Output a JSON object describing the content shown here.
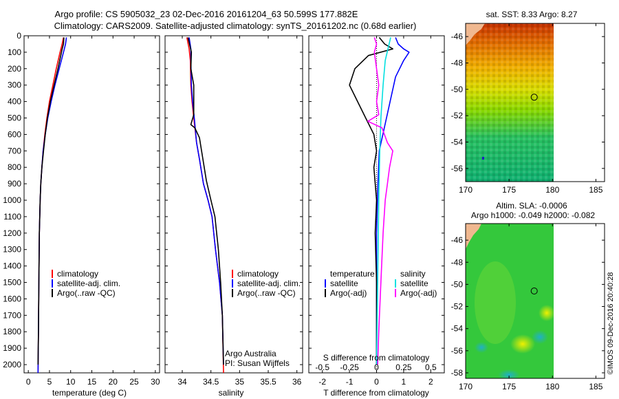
{
  "header": {
    "title1": "Argo profile: CS 5905032_23 02-Dec-2016 20161204_63 50.599S 177.882E",
    "title2": "Climatology: CARS2009. Satellite-adjusted climatology: synTS_20161202.nc (0.68d earlier)"
  },
  "watermark": "©IMOS 09-Dec-2016 20:40:28",
  "credit": {
    "line1": "Argo Australia",
    "line2": "PI: Susan Wijffels"
  },
  "colors": {
    "climatology": "#ff0000",
    "satellite": "#0000ff",
    "argo": "#000000",
    "sal_satellite": "#00e0e0",
    "sal_argo": "#ff00ff"
  },
  "depth_axis": {
    "ylim": [
      0,
      2050
    ],
    "ticks": [
      "0",
      "100",
      "200",
      "300",
      "400",
      "500",
      "600",
      "700",
      "800",
      "900",
      "1000",
      "1100",
      "1200",
      "1300",
      "1400",
      "1500",
      "1600",
      "1700",
      "1800",
      "1900",
      "2000"
    ]
  },
  "chart_data": [
    {
      "type": "line",
      "xlabel": "temperature (deg C)",
      "xlim": [
        -1,
        31
      ],
      "xticks": [
        "0",
        "5",
        "10",
        "15",
        "20",
        "25",
        "30"
      ],
      "legend": [
        "climatology",
        "satellite-adj. clim.",
        "Argo(..raw -QC)"
      ],
      "series": [
        {
          "name": "climatology",
          "points": [
            [
              8.3,
              10
            ],
            [
              8.0,
              50
            ],
            [
              7.5,
              100
            ],
            [
              6.6,
              200
            ],
            [
              5.8,
              300
            ],
            [
              5.0,
              400
            ],
            [
              4.4,
              500
            ],
            [
              3.9,
              600
            ],
            [
              3.5,
              700
            ],
            [
              3.2,
              800
            ],
            [
              2.95,
              900
            ],
            [
              2.8,
              1000
            ],
            [
              2.6,
              1200
            ],
            [
              2.5,
              1500
            ],
            [
              2.4,
              1800
            ],
            [
              2.3,
              2050
            ]
          ]
        },
        {
          "name": "satellite-adj. clim.",
          "points": [
            [
              9.0,
              10
            ],
            [
              8.8,
              50
            ],
            [
              8.3,
              100
            ],
            [
              7.3,
              200
            ],
            [
              6.3,
              300
            ],
            [
              5.4,
              400
            ],
            [
              4.6,
              500
            ],
            [
              4.0,
              600
            ],
            [
              3.5,
              700
            ],
            [
              3.2,
              800
            ],
            [
              2.95,
              900
            ],
            [
              2.8,
              1000
            ],
            [
              2.6,
              1200
            ],
            [
              2.5,
              1500
            ],
            [
              2.4,
              1800
            ],
            [
              2.3,
              2050
            ]
          ]
        },
        {
          "name": "Argo(..raw -QC)",
          "points": [
            [
              8.4,
              10
            ],
            [
              8.3,
              50
            ],
            [
              8.0,
              80
            ],
            [
              7.0,
              200
            ],
            [
              6.1,
              300
            ],
            [
              5.2,
              400
            ],
            [
              4.5,
              500
            ],
            [
              4.0,
              600
            ],
            [
              3.6,
              700
            ],
            [
              3.2,
              800
            ],
            [
              2.95,
              900
            ],
            [
              2.8,
              1000
            ],
            [
              2.6,
              1200
            ],
            [
              2.5,
              1500
            ],
            [
              2.4,
              1800
            ],
            [
              2.3,
              2000
            ]
          ]
        }
      ]
    },
    {
      "type": "line",
      "xlabel": "salinity",
      "xlim": [
        33.7,
        36.1
      ],
      "xticks": [
        "34",
        "34.5",
        "35",
        "35.5",
        "36"
      ],
      "legend": [
        "climatology",
        "satellite-adj. clim.",
        "Argo(..raw -QC)"
      ],
      "series": [
        {
          "name": "climatology",
          "points": [
            [
              34.08,
              10
            ],
            [
              34.12,
              80
            ],
            [
              34.14,
              150
            ],
            [
              34.15,
              300
            ],
            [
              34.17,
              400
            ],
            [
              34.2,
              500
            ],
            [
              34.25,
              650
            ],
            [
              34.3,
              750
            ],
            [
              34.37,
              900
            ],
            [
              34.45,
              1000
            ],
            [
              34.52,
              1100
            ],
            [
              34.58,
              1300
            ],
            [
              34.65,
              1500
            ],
            [
              34.7,
              1700
            ],
            [
              34.72,
              2050
            ]
          ]
        },
        {
          "name": "satellite-adj. clim.",
          "points": [
            [
              34.12,
              10
            ],
            [
              34.15,
              80
            ],
            [
              34.15,
              150
            ],
            [
              34.16,
              300
            ],
            [
              34.18,
              400
            ],
            [
              34.21,
              500
            ],
            [
              34.25,
              650
            ],
            [
              34.3,
              750
            ],
            [
              34.37,
              900
            ],
            [
              34.45,
              1000
            ],
            [
              34.52,
              1100
            ],
            [
              34.58,
              1300
            ],
            [
              34.65,
              1500
            ],
            [
              34.7,
              1700
            ],
            [
              34.72,
              2000
            ]
          ]
        },
        {
          "name": "Argo(..raw -QC)",
          "points": [
            [
              34.1,
              10
            ],
            [
              34.16,
              100
            ],
            [
              34.15,
              200
            ],
            [
              34.2,
              300
            ],
            [
              34.2,
              400
            ],
            [
              34.2,
              480
            ],
            [
              34.15,
              540
            ],
            [
              34.22,
              560
            ],
            [
              34.3,
              620
            ],
            [
              34.36,
              750
            ],
            [
              34.42,
              880
            ],
            [
              34.5,
              1000
            ],
            [
              34.57,
              1100
            ],
            [
              34.63,
              1300
            ],
            [
              34.67,
              1500
            ],
            [
              34.7,
              1700
            ],
            [
              34.72,
              2000
            ]
          ]
        }
      ]
    },
    {
      "type": "line",
      "xlabel": "T difference from climatology",
      "xlabel2": "S difference from climatology",
      "xlim": [
        -2.5,
        2.5
      ],
      "xticks": [
        "-2",
        "-1",
        "0",
        "1",
        "2"
      ],
      "xticks2": [
        "-0.5",
        "-0.25",
        "0",
        "0.25",
        "0.5"
      ],
      "legend_left_title": "temperature",
      "legend_right_title": "salinity",
      "legend_left": [
        "satellite",
        "Argo(-adj)"
      ],
      "legend_right": [
        "satellite",
        "Argo(-adj)"
      ],
      "series": [
        {
          "name": "temperature satellite",
          "points": [
            [
              0.7,
              10
            ],
            [
              0.8,
              50
            ],
            [
              1.0,
              80
            ],
            [
              1.2,
              100
            ],
            [
              1.0,
              150
            ],
            [
              0.7,
              250
            ],
            [
              0.5,
              400
            ],
            [
              0.3,
              550
            ],
            [
              0.1,
              700
            ],
            [
              0.05,
              900
            ],
            [
              0.0,
              1200
            ],
            [
              0.0,
              1600
            ],
            [
              0.0,
              2000
            ]
          ]
        },
        {
          "name": "temperature Argo(-adj)",
          "points": [
            [
              0.1,
              10
            ],
            [
              0.3,
              50
            ],
            [
              0.6,
              80
            ],
            [
              -0.3,
              120
            ],
            [
              -0.8,
              200
            ],
            [
              -1.0,
              300
            ],
            [
              -0.7,
              400
            ],
            [
              -0.4,
              500
            ],
            [
              -0.1,
              600
            ],
            [
              0.0,
              700
            ],
            [
              -0.1,
              800
            ],
            [
              0.0,
              1000
            ],
            [
              -0.05,
              1200
            ],
            [
              0.0,
              1500
            ],
            [
              0.0,
              2000
            ]
          ]
        },
        {
          "name": "salinity satellite",
          "points": [
            [
              0.13,
              10
            ],
            [
              0.08,
              150
            ],
            [
              0.06,
              300
            ],
            [
              0.04,
              500
            ],
            [
              0.03,
              700
            ],
            [
              0.02,
              1000
            ],
            [
              0.01,
              1500
            ],
            [
              0.0,
              2000
            ]
          ]
        },
        {
          "name": "salinity Argo(-adj)",
          "points": [
            [
              -0.02,
              10
            ],
            [
              0.0,
              50
            ],
            [
              -0.02,
              100
            ],
            [
              0.0,
              200
            ],
            [
              0.02,
              300
            ],
            [
              0.0,
              400
            ],
            [
              0.02,
              480
            ],
            [
              -0.08,
              520
            ],
            [
              0.05,
              560
            ],
            [
              0.1,
              650
            ],
            [
              0.15,
              700
            ],
            [
              0.12,
              800
            ],
            [
              0.1,
              900
            ],
            [
              0.08,
              1000
            ],
            [
              0.06,
              1200
            ],
            [
              0.04,
              1500
            ],
            [
              0.02,
              1800
            ],
            [
              0.01,
              2000
            ]
          ]
        }
      ]
    },
    {
      "type": "heatmap",
      "title": "sat. SST: 8.33 Argo: 8.27",
      "xlim": [
        170,
        186
      ],
      "ylim": [
        -57,
        -45
      ],
      "xticks": [
        "170",
        "175",
        "180",
        "185"
      ],
      "yticks": [
        "-46",
        "-48",
        "-50",
        "-52",
        "-54",
        "-56"
      ],
      "marker": [
        177.9,
        -50.6
      ]
    },
    {
      "type": "heatmap",
      "title": "Altim. SLA: -0.0006",
      "subtitle": "Argo h1000: -0.049 h2000: -0.082",
      "xlim": [
        170,
        186
      ],
      "ylim": [
        -58.5,
        -44.5
      ],
      "xticks": [
        "170",
        "175",
        "180",
        "185"
      ],
      "yticks": [
        "-46",
        "-48",
        "-50",
        "-52",
        "-54",
        "-56",
        "-58"
      ],
      "marker": [
        177.9,
        -50.6
      ]
    }
  ]
}
